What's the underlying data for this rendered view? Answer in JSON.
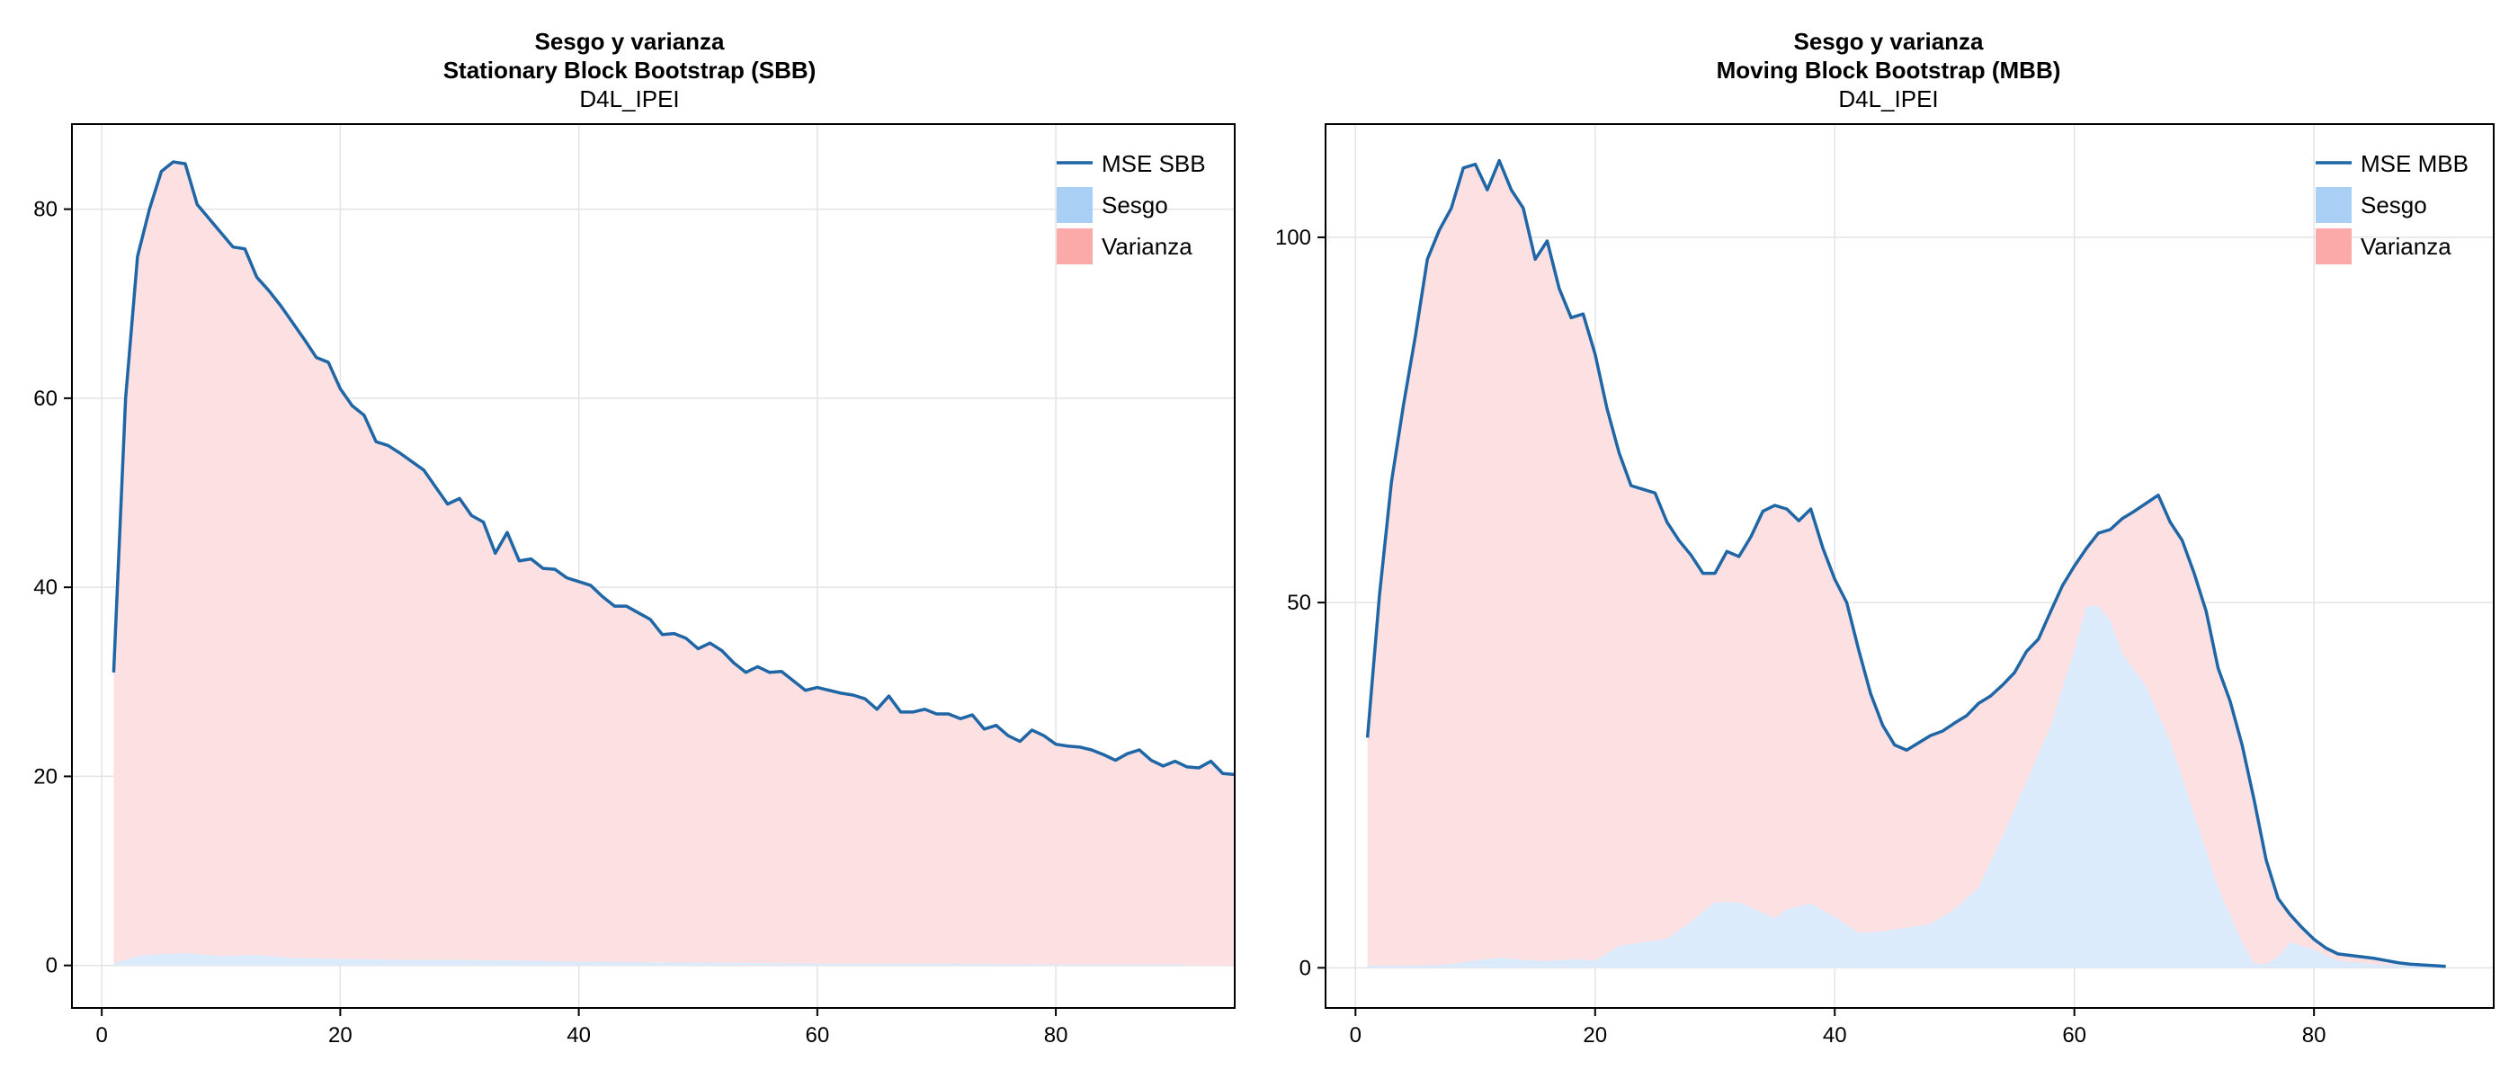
{
  "colors": {
    "line": "#1f66a6",
    "bias_fill": "#dcebfb",
    "variance_fill": "#fde0e2",
    "legend_bias": "#a9cff5",
    "legend_variance": "#fca9a9",
    "grid": "#e3e3e3",
    "axis": "#000000"
  },
  "chart_data": [
    {
      "type": "area",
      "title": "Sesgo y varianza",
      "subtitle": "Stationary Block Bootstrap (SBB)",
      "subsubtitle": "D4L_IPEI",
      "xlim": [
        -2.5,
        95
      ],
      "ylim": [
        -4.5,
        89
      ],
      "xticks": [
        0,
        20,
        40,
        60,
        80
      ],
      "yticks": [
        0,
        20,
        40,
        60,
        80
      ],
      "grid": true,
      "legend_position": "top-right",
      "legend": [
        {
          "label": "MSE SBB",
          "kind": "line"
        },
        {
          "label": "Sesgo",
          "kind": "bias"
        },
        {
          "label": "Varianza",
          "kind": "variance"
        }
      ],
      "series": [
        {
          "name": "MSE SBB",
          "kind": "line",
          "x_start": 1,
          "values": [
            31,
            60,
            75,
            80,
            84,
            85,
            84.8,
            80.5,
            79,
            77.5,
            76,
            75.8,
            72.8,
            71.4,
            69.8,
            68,
            66.2,
            64.3,
            63.8,
            61,
            59.2,
            58.2,
            55.4,
            55,
            54.2,
            53.3,
            52.4,
            50.6,
            48.8,
            49.4,
            47.6,
            46.9,
            43.6,
            45.8,
            42.8,
            43,
            42,
            41.9,
            41,
            40.6,
            40.2,
            39,
            38,
            38,
            37.3,
            36.6,
            35,
            35.1,
            34.6,
            33.5,
            34.1,
            33.3,
            32,
            31,
            31.6,
            31,
            31.1,
            30.1,
            29.1,
            29.4,
            29.1,
            28.8,
            28.6,
            28.2,
            27.1,
            28.5,
            26.8,
            26.8,
            27.1,
            26.6,
            26.6,
            26.1,
            26.5,
            25,
            25.4,
            24.3,
            23.7,
            24.9,
            24.3,
            23.4,
            23.2,
            23.1,
            22.8,
            22.3,
            21.7,
            22.4,
            22.8,
            21.7,
            21.1,
            21.6,
            21,
            20.9,
            21.6,
            20.3,
            20.2
          ],
          "note": "values indexed from x=1"
        },
        {
          "name": "Sesgo",
          "kind": "bias",
          "x": [
            1,
            3,
            5,
            7,
            10,
            13,
            16,
            20,
            25,
            30,
            40,
            50,
            60,
            70,
            80,
            91
          ],
          "values": [
            0.2,
            1,
            1.2,
            1.3,
            1,
            1.1,
            0.8,
            0.7,
            0.6,
            0.6,
            0.4,
            0.3,
            0.2,
            0.2,
            0.1,
            0.1
          ]
        }
      ]
    },
    {
      "type": "area",
      "title": "Sesgo y varianza",
      "subtitle": "Moving Block Bootstrap (MBB)",
      "subsubtitle": "D4L_IPEI",
      "xlim": [
        -2.5,
        95
      ],
      "ylim": [
        -5.5,
        115.5
      ],
      "xticks": [
        0,
        20,
        40,
        60,
        80
      ],
      "yticks": [
        0,
        50,
        100
      ],
      "grid": true,
      "legend_position": "top-right",
      "legend": [
        {
          "label": "MSE MBB",
          "kind": "line"
        },
        {
          "label": "Sesgo",
          "kind": "bias"
        },
        {
          "label": "Varianza",
          "kind": "variance"
        }
      ],
      "series": [
        {
          "name": "MSE MBB",
          "kind": "line",
          "x": [
            1,
            2,
            3,
            4,
            5,
            6,
            7,
            8,
            9,
            10,
            11,
            12,
            13,
            14,
            15,
            16,
            17,
            18,
            19,
            20,
            21,
            22,
            23,
            24,
            25,
            26,
            27,
            28,
            29,
            30,
            31,
            32,
            33,
            34,
            35,
            36,
            37,
            38,
            39,
            40,
            41,
            42,
            43,
            44,
            45,
            46,
            47,
            48,
            49,
            50,
            51,
            52,
            53,
            54,
            55,
            56,
            57,
            58,
            59,
            60,
            61,
            62,
            63,
            64,
            65,
            66,
            67,
            68,
            69,
            70,
            71,
            72,
            73,
            74,
            75,
            76,
            77,
            78,
            79,
            80,
            81,
            82,
            83,
            84,
            85,
            86,
            87,
            88,
            89,
            90,
            91
          ],
          "values": [
            31.5,
            51,
            66.5,
            77,
            86.5,
            97,
            101,
            104,
            109.5,
            110,
            106.5,
            110.5,
            106.5,
            104,
            97,
            99.5,
            93,
            89,
            89.5,
            84,
            76.5,
            70.5,
            66,
            65.5,
            65,
            61,
            58.5,
            56.5,
            54,
            54,
            57,
            56.3,
            59,
            62.5,
            63.3,
            62.8,
            61.2,
            62.8,
            57.5,
            53.2,
            50,
            43.5,
            37.5,
            33.2,
            30.5,
            29.8,
            30.8,
            31.8,
            32.4,
            33.5,
            34.5,
            36.2,
            37.2,
            38.7,
            40.4,
            43.3,
            45,
            48.7,
            52.3,
            55,
            57.4,
            59.5,
            60,
            61.5,
            62.5,
            63.6,
            64.7,
            61,
            58.5,
            54,
            48.8,
            41,
            36.5,
            30.5,
            23,
            14.8,
            9.5,
            7.3,
            5.5,
            3.9,
            2.7,
            1.9,
            1.7,
            1.5,
            1.3,
            1,
            0.7,
            0.5,
            0.4,
            0.3,
            0.2
          ]
        },
        {
          "name": "Sesgo",
          "kind": "bias",
          "x": [
            1,
            5,
            8,
            10,
            12,
            14,
            16,
            18,
            20,
            22,
            24,
            26,
            28,
            30,
            32,
            34,
            35,
            36,
            38,
            40,
            42,
            44,
            46,
            48,
            50,
            52,
            54,
            56,
            58,
            60,
            61,
            62,
            63,
            64,
            66,
            68,
            70,
            72,
            74,
            75,
            76,
            77,
            78,
            80,
            82,
            85,
            88,
            91
          ],
          "values": [
            0.3,
            0.3,
            0.5,
            1,
            1.4,
            1.1,
            0.9,
            1.2,
            1,
            3,
            3.5,
            4,
            6.3,
            9,
            9,
            7.5,
            6.8,
            8,
            8.8,
            7,
            4.8,
            5,
            5.5,
            6,
            8,
            11,
            18,
            25.5,
            33,
            43.5,
            49.5,
            49.5,
            47.5,
            43,
            38.5,
            31,
            21,
            11,
            3.5,
            0.6,
            0.5,
            1.5,
            3.5,
            2.5,
            1,
            0.5,
            0.3,
            0.2
          ]
        }
      ]
    }
  ]
}
